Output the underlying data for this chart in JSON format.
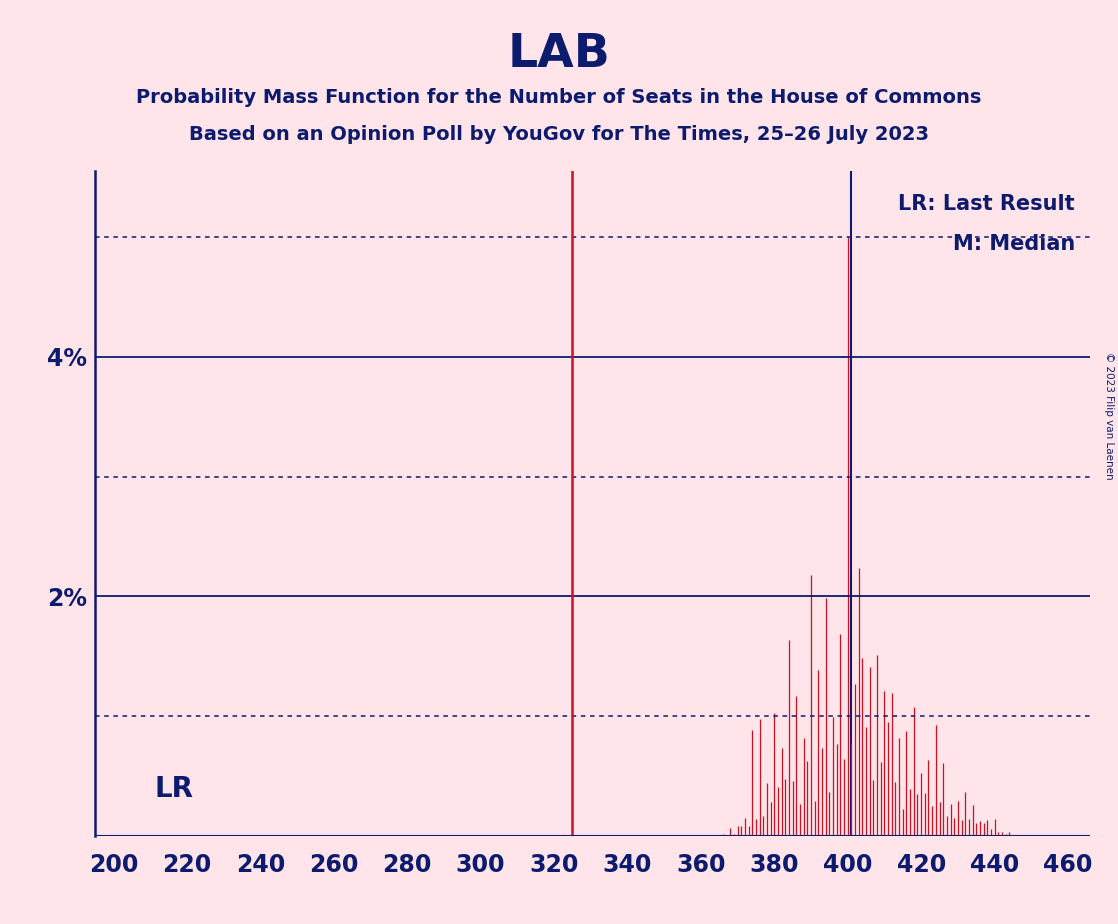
{
  "title": "LAB",
  "subtitle1": "Probability Mass Function for the Number of Seats in the House of Commons",
  "subtitle2": "Based on an Opinion Poll by YouGov for The Times, 25–26 July 2023",
  "copyright": "© 2023 Filip van Laenen",
  "background_color": "#FFE4EA",
  "text_color": "#0D1B6E",
  "bar_color": "#CC1122",
  "median_line_color": "#0D1B6E",
  "lr_line_color": "#CC1122",
  "lr_value": 325,
  "median_value": 401,
  "x_min": 195,
  "x_max": 466,
  "x_ticks": [
    200,
    220,
    240,
    260,
    280,
    300,
    320,
    340,
    360,
    380,
    400,
    420,
    440,
    460
  ],
  "y_max": 0.0555,
  "solid_grid_lines": [
    0.02,
    0.04
  ],
  "dotted_grid_lines": [
    0.01,
    0.03,
    0.05
  ],
  "lr_label": "LR",
  "legend_lr": "LR: Last Result",
  "legend_m": "M: Median"
}
